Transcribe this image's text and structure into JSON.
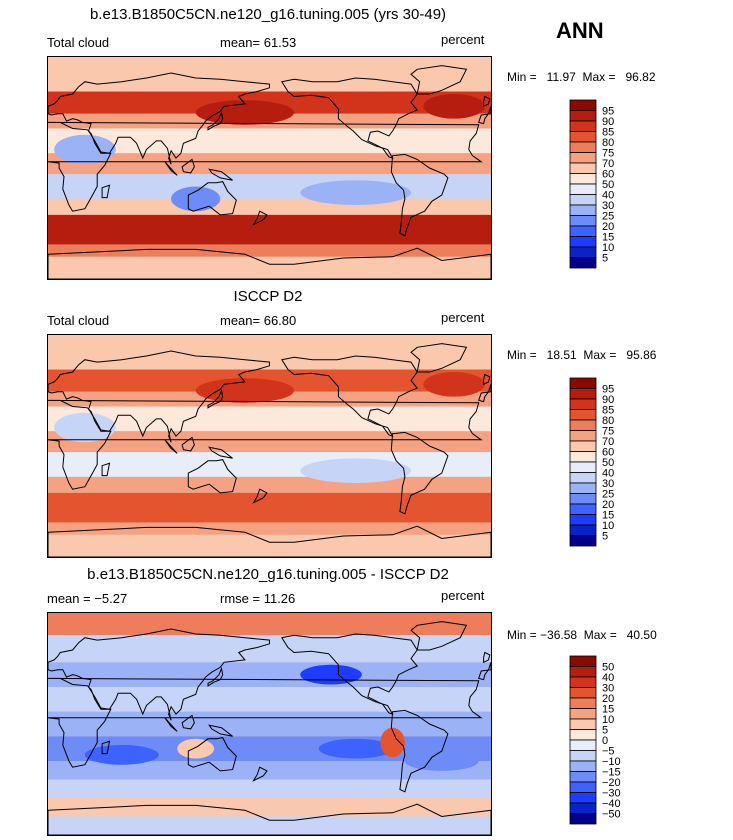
{
  "header": {
    "season": "ANN"
  },
  "panels": [
    {
      "title": "b.e13.B1850C5CN.ne120_g16.tuning.005 (yrs 30-49)",
      "variable": "Total cloud",
      "mean_text": "mean=   61.53",
      "units": "percent",
      "minmax_text": "Min =   11.97  Max =   96.82",
      "colorbar_levels": [
        "95",
        "90",
        "85",
        "80",
        "75",
        "70",
        "60",
        "50",
        "40",
        "30",
        "25",
        "20",
        "15",
        "10",
        "5"
      ]
    },
    {
      "title": "ISCCP D2",
      "variable": "Total cloud",
      "mean_text": "mean=   66.80",
      "units": "percent",
      "minmax_text": "Min =   18.51  Max =   95.86",
      "colorbar_levels": [
        "95",
        "90",
        "85",
        "80",
        "75",
        "70",
        "60",
        "50",
        "40",
        "30",
        "25",
        "20",
        "15",
        "10",
        "5"
      ]
    },
    {
      "title": "b.e13.B1850C5CN.ne120_g16.tuning.005 - ISCCP D2",
      "variable": "",
      "mean_text": "mean =   −5.27",
      "rmse_text": "rmse =   11.26",
      "units": "percent",
      "minmax_text": "Min = −36.58  Max =   40.50",
      "colorbar_levels": [
        "50",
        "40",
        "30",
        "20",
        "15",
        "10",
        "5",
        "0",
        "−5",
        "−10",
        "−15",
        "−20",
        "−30",
        "−40",
        "−50"
      ]
    }
  ],
  "chart_data": [
    {
      "type": "heatmap",
      "title": "b.e13.B1850C5CN.ne120_g16.tuning.005 (yrs 30-49)",
      "field": "Total cloud",
      "units": "percent",
      "mean": 61.53,
      "min": 11.97,
      "max": 96.82,
      "contour_levels": [
        5,
        10,
        15,
        20,
        25,
        30,
        40,
        50,
        60,
        70,
        75,
        80,
        85,
        90,
        95
      ],
      "colors": [
        "#00008b",
        "#0a23c8",
        "#1e3cff",
        "#3c62ff",
        "#6e8cf8",
        "#9cb2f7",
        "#c6d4f7",
        "#e7eefa",
        "#fce9dc",
        "#f9c8ad",
        "#f5a283",
        "#ee7d5c",
        "#e4552f",
        "#d1341a",
        "#b51e0e",
        "#8a0a00"
      ]
    },
    {
      "type": "heatmap",
      "title": "ISCCP D2",
      "field": "Total cloud",
      "units": "percent",
      "mean": 66.8,
      "min": 18.51,
      "max": 95.86,
      "contour_levels": [
        5,
        10,
        15,
        20,
        25,
        30,
        40,
        50,
        60,
        70,
        75,
        80,
        85,
        90,
        95
      ],
      "colors": [
        "#00008b",
        "#0a23c8",
        "#1e3cff",
        "#3c62ff",
        "#6e8cf8",
        "#9cb2f7",
        "#c6d4f7",
        "#e7eefa",
        "#fce9dc",
        "#f9c8ad",
        "#f5a283",
        "#ee7d5c",
        "#e4552f",
        "#d1341a",
        "#b51e0e",
        "#8a0a00"
      ]
    },
    {
      "type": "heatmap",
      "title": "b.e13.B1850C5CN.ne120_g16.tuning.005 - ISCCP D2",
      "units": "percent",
      "mean": -5.27,
      "rmse": 11.26,
      "min": -36.58,
      "max": 40.5,
      "contour_levels": [
        -50,
        -40,
        -30,
        -20,
        -15,
        -10,
        -5,
        0,
        5,
        10,
        15,
        20,
        30,
        40,
        50
      ],
      "colors": [
        "#00008b",
        "#0a23c8",
        "#1e3cff",
        "#3c62ff",
        "#6e8cf8",
        "#9cb2f7",
        "#c6d4f7",
        "#e7eefa",
        "#fce9dc",
        "#f9c8ad",
        "#f5a283",
        "#ee7d5c",
        "#e4552f",
        "#d1341a",
        "#b51e0e",
        "#8a0a00"
      ]
    }
  ]
}
